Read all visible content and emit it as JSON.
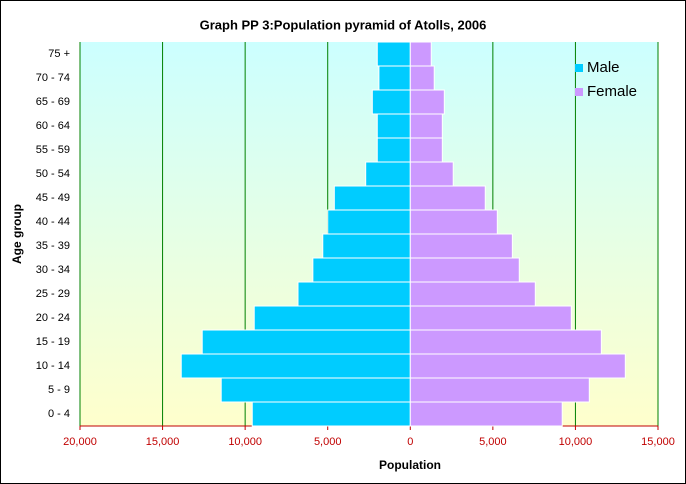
{
  "chart_data": {
    "type": "pyramid",
    "title": "Graph PP 3:Population pyramid of Atolls, 2006",
    "x_label": "Population",
    "y_label": "Age group",
    "categories": [
      "0 - 4",
      "5 - 9",
      "10 - 14",
      "15 - 19",
      "20 - 24",
      "25 - 29",
      "30 - 34",
      "35 - 39",
      "40 - 44",
      "45 - 49",
      "50 - 54",
      "55 - 59",
      "60 - 64",
      "65 - 69",
      "70 - 74",
      "75 +"
    ],
    "series": [
      {
        "name": "Male",
        "color": "#00ccff",
        "values": [
          -9570,
          -11450,
          -13870,
          -12600,
          -9450,
          -6800,
          -5900,
          -5300,
          -5000,
          -4600,
          -2700,
          -2000,
          -2000,
          -2300,
          -1900,
          -2000
        ]
      },
      {
        "name": "Female",
        "color": "#cc99ff",
        "values": [
          9200,
          10840,
          13020,
          11570,
          9750,
          7570,
          6600,
          6180,
          5270,
          4540,
          2600,
          1940,
          1940,
          2060,
          1450,
          1270
        ]
      }
    ],
    "xlim": [
      -20000,
      15000
    ],
    "xticks": [
      {
        "value": -20000,
        "label": "20,000"
      },
      {
        "value": -15000,
        "label": "15,000"
      },
      {
        "value": -10000,
        "label": "10,000"
      },
      {
        "value": -5000,
        "label": "5,000"
      },
      0,
      {
        "value": 5000,
        "label": "5,000"
      },
      {
        "value": 10000,
        "label": "10,000"
      },
      {
        "value": 15000,
        "label": "15,000"
      }
    ],
    "grid": true,
    "legend": "top-right"
  }
}
